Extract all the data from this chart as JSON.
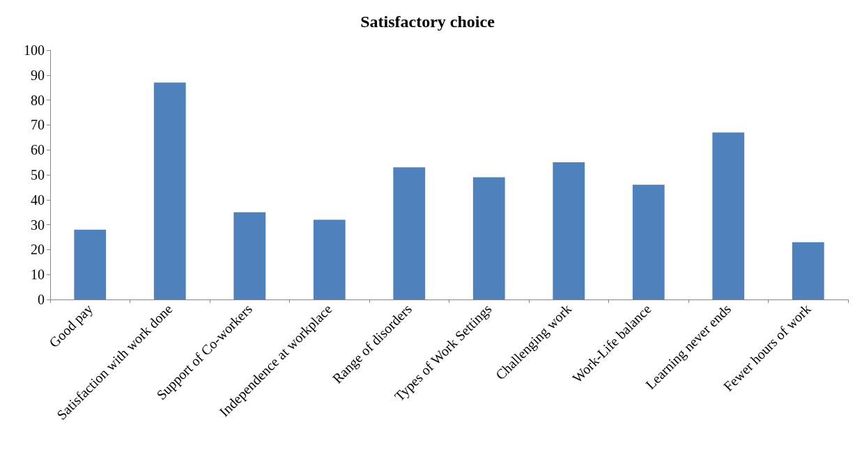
{
  "chart_data": {
    "type": "bar",
    "title": "Satisfactory choice",
    "categories": [
      "Good pay",
      "Satisfaction with work done",
      "Support of Co-workers",
      "Independence at workplace",
      "Range of disorders",
      "Types of Work Settings",
      "Challenging work",
      "Work-Life balance",
      "Learning never ends",
      "Fewer hours of work"
    ],
    "values": [
      28,
      87,
      35,
      32,
      53,
      49,
      55,
      46,
      67,
      23
    ],
    "color": "#4f81bd",
    "ylim": [
      0,
      100
    ],
    "yticks": [
      0,
      10,
      20,
      30,
      40,
      50,
      60,
      70,
      80,
      90,
      100
    ],
    "grid": false
  }
}
